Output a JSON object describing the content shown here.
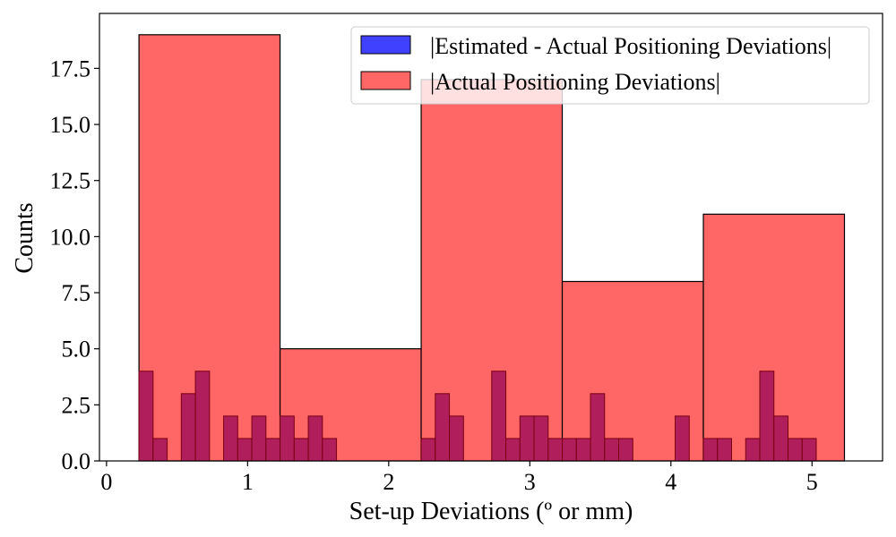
{
  "chart_data": {
    "type": "bar",
    "title": "",
    "xlabel": "Set-up Deviations (º or mm)",
    "ylabel": "Counts",
    "xlim": [
      -0.05,
      5.5
    ],
    "ylim": [
      0,
      19.95
    ],
    "xticks": [
      "0",
      "1",
      "2",
      "3",
      "4",
      "5"
    ],
    "yticks": [
      "0.0",
      "2.5",
      "5.0",
      "7.5",
      "10.0",
      "12.5",
      "15.0",
      "17.5"
    ],
    "grid": false,
    "legend_position": "top-right",
    "series": [
      {
        "name": "|Actual Positioning Deviations|",
        "color": "#ff6666",
        "bin_width": 1.0,
        "bins": [
          {
            "start": 0.23,
            "count": 19
          },
          {
            "start": 1.23,
            "count": 5
          },
          {
            "start": 2.23,
            "count": 17
          },
          {
            "start": 3.23,
            "count": 8
          },
          {
            "start": 4.23,
            "count": 11
          }
        ]
      },
      {
        "name": "|Estimated - Actual Positioning Deviations|",
        "color": "#4040ff",
        "overlap_color": "#b01e5c",
        "bin_width": 0.1,
        "bins": [
          {
            "start": 0.23,
            "count": 4
          },
          {
            "start": 0.33,
            "count": 1
          },
          {
            "start": 0.53,
            "count": 3
          },
          {
            "start": 0.63,
            "count": 4
          },
          {
            "start": 0.83,
            "count": 2
          },
          {
            "start": 0.93,
            "count": 1
          },
          {
            "start": 1.03,
            "count": 2
          },
          {
            "start": 1.13,
            "count": 1
          },
          {
            "start": 1.23,
            "count": 2
          },
          {
            "start": 1.33,
            "count": 1
          },
          {
            "start": 1.43,
            "count": 2
          },
          {
            "start": 1.53,
            "count": 1
          },
          {
            "start": 2.23,
            "count": 1
          },
          {
            "start": 2.33,
            "count": 3
          },
          {
            "start": 2.43,
            "count": 2
          },
          {
            "start": 2.73,
            "count": 4
          },
          {
            "start": 2.83,
            "count": 1
          },
          {
            "start": 2.93,
            "count": 2
          },
          {
            "start": 3.03,
            "count": 2
          },
          {
            "start": 3.13,
            "count": 1
          },
          {
            "start": 3.23,
            "count": 1
          },
          {
            "start": 3.33,
            "count": 1
          },
          {
            "start": 3.43,
            "count": 3
          },
          {
            "start": 3.53,
            "count": 1
          },
          {
            "start": 3.63,
            "count": 1
          },
          {
            "start": 4.03,
            "count": 2
          },
          {
            "start": 4.23,
            "count": 1
          },
          {
            "start": 4.33,
            "count": 1
          },
          {
            "start": 4.53,
            "count": 1
          },
          {
            "start": 4.63,
            "count": 4
          },
          {
            "start": 4.73,
            "count": 2
          },
          {
            "start": 4.83,
            "count": 1
          },
          {
            "start": 4.93,
            "count": 1
          }
        ]
      }
    ]
  }
}
